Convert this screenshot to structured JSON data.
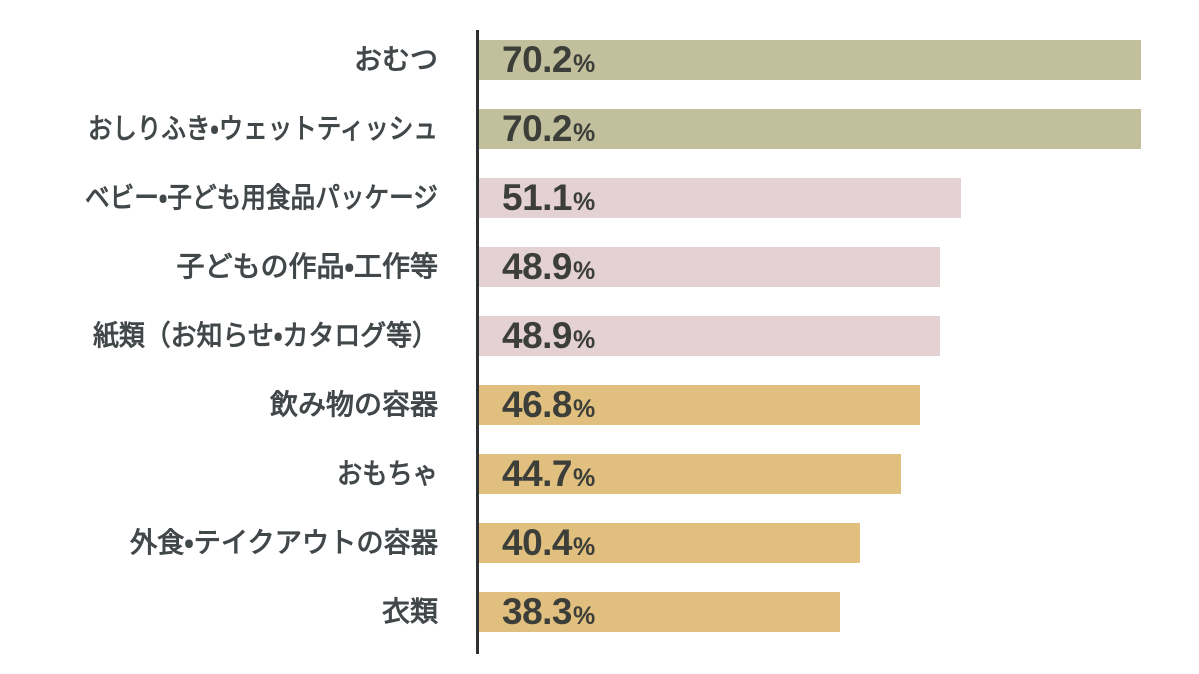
{
  "chart_data": {
    "type": "bar",
    "orientation": "horizontal",
    "title": "",
    "xlabel": "",
    "ylabel": "",
    "value_suffix": "%",
    "xlim": [
      0,
      76
    ],
    "grid": false,
    "legend": false,
    "categories": [
      "おむつ",
      "おしりふき・ウェットティッシュ",
      "ベビー・子ども用食品パッケージ",
      "子どもの作品・工作等",
      "紙類（お知らせ・カタログ等）",
      "飲み物の容器",
      "おもちゃ",
      "外食・テイクアウトの容器",
      "衣類"
    ],
    "values": [
      70.2,
      70.2,
      51.1,
      48.9,
      48.9,
      46.8,
      44.7,
      40.4,
      38.3
    ],
    "value_labels": [
      "70.2",
      "70.2",
      "51.1",
      "48.9",
      "48.9",
      "46.8",
      "44.7",
      "40.4",
      "38.3"
    ],
    "bar_colors": [
      "#c2bf9d",
      "#c2bf9d",
      "#e3d1d3",
      "#e3d1d3",
      "#e3d1d3",
      "#e1bf7f",
      "#e1bf7f",
      "#e1bf7f",
      "#e1bf7f"
    ],
    "colors": {
      "olive_bar": "#c2bf9d",
      "pink_bar": "#e3d1d3",
      "gold_bar": "#e1bf7f",
      "axis_line": "#2e3133",
      "category_text": "#42474a",
      "value_text": "#3c3e39",
      "background": "#ffffff"
    }
  }
}
